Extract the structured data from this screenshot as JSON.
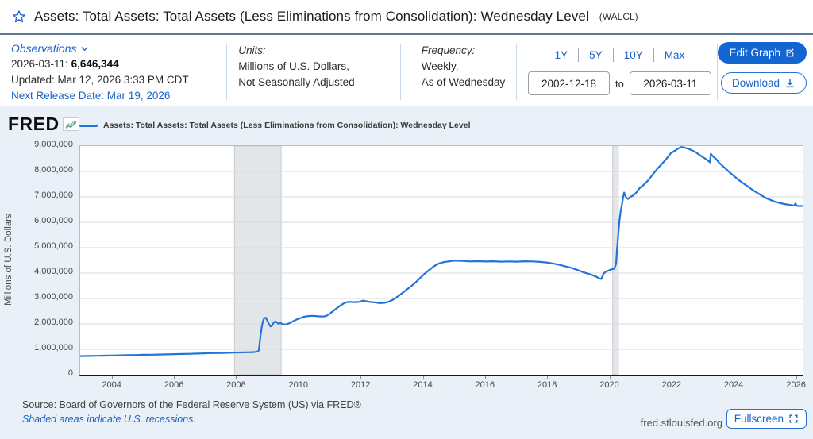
{
  "header": {
    "title": "Assets: Total Assets: Total Assets (Less Eliminations from Consolidation): Wednesday Level",
    "series_id": "(WALCL)"
  },
  "info_bar": {
    "observations": {
      "label": "Observations",
      "latest_date": "2026-03-11:",
      "latest_value": "6,646,344",
      "updated": "Updated: Mar 12, 2026 3:33 PM CDT",
      "next_release": "Next Release Date: Mar 19, 2026"
    },
    "units": {
      "label": "Units:",
      "line1": "Millions of U.S. Dollars,",
      "line2": "Not Seasonally Adjusted"
    },
    "frequency": {
      "label": "Frequency:",
      "line1": "Weekly,",
      "line2": "As of Wednesday"
    },
    "range": {
      "presets": [
        "1Y",
        "5Y",
        "10Y",
        "Max"
      ],
      "start_date": "2002-12-18",
      "to_label": "to",
      "end_date": "2026-03-11"
    },
    "actions": {
      "edit_graph": "Edit Graph",
      "download": "Download"
    }
  },
  "graph": {
    "brand": "FRED",
    "legend": "Assets: Total Assets: Total Assets (Less Eliminations from Consolidation): Wednesday Level",
    "source": "Source: Board of Governors of the Federal Reserve System (US) via FRED®",
    "recession_note": "Shaded areas indicate U.S. recessions.",
    "watermark": "fred.stlouisfed.org",
    "fullscreen": "Fullscreen"
  },
  "chart_data": {
    "type": "line",
    "title": "Assets: Total Assets: Total Assets (Less Eliminations from Consolidation): Wednesday Level (WALCL)",
    "xlabel": "",
    "ylabel": "Millions of U.S. Dollars",
    "x_range": [
      2002.96,
      2026.19
    ],
    "ylim": [
      0,
      9000000
    ],
    "ytick_step": 1000000,
    "ytick_labels": [
      "0",
      "1,000,000",
      "2,000,000",
      "3,000,000",
      "4,000,000",
      "5,000,000",
      "6,000,000",
      "7,000,000",
      "8,000,000",
      "9,000,000"
    ],
    "xticks": [
      2004,
      2006,
      2008,
      2010,
      2012,
      2014,
      2016,
      2018,
      2020,
      2022,
      2024,
      2026
    ],
    "grid": true,
    "legend_position": "top-left",
    "line_color": "#2374d9",
    "recession_color": "#e3e6e9",
    "recessions": [
      [
        2007.92,
        2009.42
      ],
      [
        2020.08,
        2020.26
      ]
    ],
    "series": [
      {
        "name": "Assets: Total Assets: Total Assets (Less Eliminations from Consolidation): Wednesday Level",
        "x": [
          2002.96,
          2003.25,
          2003.5,
          2003.75,
          2004.0,
          2004.25,
          2004.5,
          2004.75,
          2005.0,
          2005.25,
          2005.5,
          2005.75,
          2006.0,
          2006.25,
          2006.5,
          2006.75,
          2007.0,
          2007.25,
          2007.5,
          2007.75,
          2007.92,
          2008.1,
          2008.3,
          2008.5,
          2008.62,
          2008.68,
          2008.7,
          2008.73,
          2008.76,
          2008.8,
          2008.84,
          2008.88,
          2008.93,
          2008.98,
          2009.03,
          2009.08,
          2009.13,
          2009.18,
          2009.23,
          2009.28,
          2009.33,
          2009.4,
          2009.47,
          2009.55,
          2009.65,
          2009.75,
          2009.85,
          2009.95,
          2010.05,
          2010.15,
          2010.3,
          2010.45,
          2010.6,
          2010.75,
          2010.87,
          2011.0,
          2011.15,
          2011.3,
          2011.45,
          2011.55,
          2011.65,
          2011.8,
          2011.95,
          2012.05,
          2012.15,
          2012.3,
          2012.45,
          2012.6,
          2012.75,
          2012.9,
          2013.0,
          2013.15,
          2013.3,
          2013.45,
          2013.6,
          2013.75,
          2013.9,
          2014.05,
          2014.2,
          2014.35,
          2014.5,
          2014.65,
          2014.8,
          2015.0,
          2015.25,
          2015.5,
          2015.75,
          2016.0,
          2016.25,
          2016.5,
          2016.75,
          2017.0,
          2017.25,
          2017.5,
          2017.75,
          2017.95,
          2018.15,
          2018.35,
          2018.55,
          2018.75,
          2018.95,
          2019.1,
          2019.25,
          2019.4,
          2019.55,
          2019.65,
          2019.72,
          2019.78,
          2019.85,
          2019.95,
          2020.05,
          2020.13,
          2020.19,
          2020.22,
          2020.26,
          2020.3,
          2020.34,
          2020.38,
          2020.42,
          2020.45,
          2020.48,
          2020.52,
          2020.58,
          2020.65,
          2020.75,
          2020.85,
          2020.95,
          2021.05,
          2021.2,
          2021.35,
          2021.5,
          2021.65,
          2021.8,
          2021.95,
          2022.1,
          2022.2,
          2022.3,
          2022.4,
          2022.5,
          2022.6,
          2022.75,
          2022.9,
          2023.0,
          2023.1,
          2023.18,
          2023.21,
          2023.24,
          2023.3,
          2023.4,
          2023.5,
          2023.65,
          2023.8,
          2023.95,
          2024.1,
          2024.25,
          2024.4,
          2024.55,
          2024.7,
          2024.85,
          2025.0,
          2025.15,
          2025.3,
          2025.45,
          2025.6,
          2025.75,
          2025.85,
          2025.92,
          2025.96,
          2026.0,
          2026.07,
          2026.13,
          2026.19
        ],
        "y": [
          732000,
          738000,
          744000,
          750000,
          757000,
          763000,
          770000,
          776000,
          783000,
          789000,
          795000,
          801000,
          808000,
          815000,
          822000,
          830000,
          843000,
          850000,
          856000,
          862000,
          868000,
          874000,
          880000,
          888000,
          900000,
          920000,
          960000,
          1220000,
          1560000,
          1900000,
          2120000,
          2230000,
          2240000,
          2120000,
          1990000,
          1900000,
          1930000,
          2050000,
          2100000,
          2060000,
          2010000,
          2030000,
          1990000,
          1975000,
          2010000,
          2070000,
          2130000,
          2190000,
          2230000,
          2280000,
          2310000,
          2320000,
          2300000,
          2290000,
          2310000,
          2420000,
          2560000,
          2700000,
          2820000,
          2860000,
          2865000,
          2855000,
          2870000,
          2920000,
          2890000,
          2860000,
          2845000,
          2815000,
          2830000,
          2880000,
          2940000,
          3060000,
          3200000,
          3340000,
          3480000,
          3640000,
          3820000,
          3990000,
          4140000,
          4280000,
          4380000,
          4430000,
          4460000,
          4490000,
          4480000,
          4460000,
          4470000,
          4455000,
          4465000,
          4450000,
          4460000,
          4450000,
          4465000,
          4460000,
          4440000,
          4420000,
          4380000,
          4330000,
          4270000,
          4210000,
          4120000,
          4050000,
          3990000,
          3930000,
          3860000,
          3790000,
          3765000,
          3960000,
          4050000,
          4100000,
          4150000,
          4170000,
          4360000,
          4900000,
          5500000,
          6080000,
          6450000,
          6700000,
          7010000,
          7170000,
          7080000,
          6960000,
          6920000,
          7000000,
          7060000,
          7180000,
          7350000,
          7440000,
          7620000,
          7850000,
          8080000,
          8280000,
          8480000,
          8720000,
          8830000,
          8920000,
          8962000,
          8935000,
          8900000,
          8850000,
          8760000,
          8630000,
          8550000,
          8470000,
          8390000,
          8360000,
          8700000,
          8600000,
          8500000,
          8350000,
          8180000,
          8010000,
          7850000,
          7700000,
          7560000,
          7430000,
          7300000,
          7180000,
          7070000,
          6960000,
          6880000,
          6810000,
          6760000,
          6720000,
          6690000,
          6670000,
          6660000,
          6740000,
          6650000,
          6635000,
          6640000,
          6646344
        ]
      }
    ]
  }
}
